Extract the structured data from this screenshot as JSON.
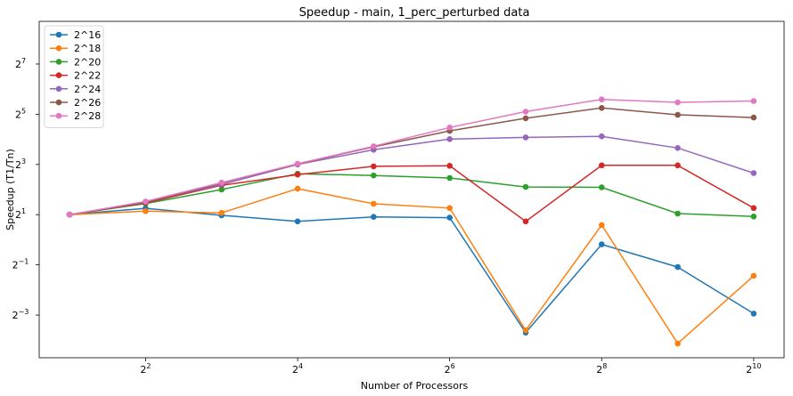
{
  "chart_data": {
    "type": "line",
    "title": "Speedup - main, 1_perc_perturbed data",
    "xlabel": "Number of Processors",
    "ylabel": "Speedup (T1/Tn)",
    "x_scale": "log2",
    "y_scale": "log2",
    "xlim_exp": [
      0.6,
      10.4
    ],
    "ylim_exp": [
      -4.7,
      8.7
    ],
    "x_ticks": [
      {
        "exp": 2,
        "base": "2",
        "sup": "2"
      },
      {
        "exp": 4,
        "base": "2",
        "sup": "4"
      },
      {
        "exp": 6,
        "base": "2",
        "sup": "6"
      },
      {
        "exp": 8,
        "base": "2",
        "sup": "8"
      },
      {
        "exp": 10,
        "base": "2",
        "sup": "10"
      }
    ],
    "y_ticks": [
      {
        "exp": -3,
        "base": "2",
        "sup": "−3"
      },
      {
        "exp": -1,
        "base": "2",
        "sup": "−1"
      },
      {
        "exp": 1,
        "base": "2",
        "sup": "1"
      },
      {
        "exp": 3,
        "base": "2",
        "sup": "3"
      },
      {
        "exp": 5,
        "base": "2",
        "sup": "5"
      },
      {
        "exp": 7,
        "base": "2",
        "sup": "7"
      }
    ],
    "x": [
      2,
      4,
      8,
      16,
      32,
      64,
      128,
      256,
      512,
      1024
    ],
    "legend_position": "top-left",
    "grid": false,
    "series": [
      {
        "name": "2^16",
        "color": "#1f77b4",
        "values": [
          2.0,
          2.38,
          1.96,
          1.66,
          1.88,
          1.84,
          0.077,
          0.88,
          0.47,
          0.13
        ]
      },
      {
        "name": "2^18",
        "color": "#ff7f0e",
        "values": [
          2.0,
          2.2,
          2.1,
          4.1,
          2.7,
          2.4,
          0.082,
          1.5,
          0.057,
          0.37
        ]
      },
      {
        "name": "2^20",
        "color": "#2ca02c",
        "values": [
          2.0,
          2.72,
          4.0,
          6.2,
          5.9,
          5.5,
          4.3,
          4.25,
          2.06,
          1.9
        ]
      },
      {
        "name": "2^22",
        "color": "#d62728",
        "values": [
          2.0,
          2.76,
          4.5,
          6.05,
          7.6,
          7.7,
          1.66,
          7.8,
          7.8,
          2.4
        ]
      },
      {
        "name": "2^24",
        "color": "#9467bd",
        "values": [
          2.0,
          2.84,
          4.6,
          8.0,
          12.0,
          16.1,
          16.9,
          17.4,
          12.6,
          6.3
        ]
      },
      {
        "name": "2^26",
        "color": "#8c564b",
        "values": [
          2.0,
          2.8,
          4.8,
          8.1,
          13.0,
          20.2,
          28.6,
          38.1,
          31.5,
          29.2
        ]
      },
      {
        "name": "2^28",
        "color": "#e377c2",
        "values": [
          2.0,
          2.88,
          4.85,
          8.15,
          13.2,
          22.2,
          34.4,
          48.2,
          44.5,
          46.1
        ]
      }
    ]
  }
}
